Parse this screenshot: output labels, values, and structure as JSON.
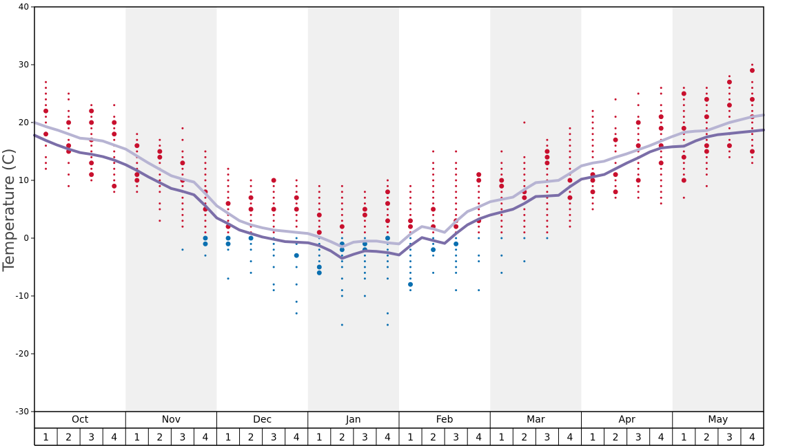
{
  "chart_data": {
    "type": "scatter",
    "ylabel": "Temperature (C)",
    "ylim": [
      -30,
      40
    ],
    "yticks": [
      40,
      30,
      20,
      10,
      0,
      -10,
      -20,
      -30
    ],
    "months": [
      "Oct",
      "Nov",
      "Dec",
      "Jan",
      "Feb",
      "Mar",
      "Apr",
      "May"
    ],
    "week_labels": [
      "1",
      "2",
      "3",
      "4"
    ],
    "x_range": [
      0.5,
      32.5
    ],
    "colors": {
      "warm_dot": "#c8102e",
      "cold_dot": "#0a6fb0",
      "high_line": "#b7b4d3",
      "low_line": "#7b6ea8",
      "band_shade": "#f0f0f0"
    },
    "series": [
      {
        "name": "",
        "role": "average-high",
        "x": [
          0.5,
          1,
          1.5,
          2,
          2.5,
          3,
          3.5,
          4,
          4.5,
          5,
          5.5,
          6,
          6.5,
          7,
          7.5,
          8,
          8.5,
          9,
          9.5,
          10,
          10.5,
          11,
          11.5,
          12,
          12.5,
          13,
          13.5,
          14,
          14.5,
          15,
          15.5,
          16,
          16.5,
          17,
          17.5,
          18,
          18.5,
          19,
          19.5,
          20,
          20.5,
          21,
          21.5,
          22,
          22.5,
          23,
          23.5,
          24,
          24.5,
          25,
          25.5,
          26,
          26.5,
          27,
          27.5,
          28,
          28.5,
          29,
          29.5,
          30,
          30.5,
          31,
          31.5,
          32,
          32.5
        ],
        "values": [
          20,
          19.3,
          18.7,
          18,
          17.3,
          17.1,
          16.8,
          16.1,
          15.4,
          14.2,
          13.0,
          11.9,
          10.8,
          10.2,
          9.7,
          7.7,
          5.6,
          4.3,
          3.0,
          2.3,
          1.8,
          1.4,
          1.2,
          1.0,
          0.8,
          0.2,
          -0.6,
          -1.5,
          -0.7,
          -0.5,
          -0.5,
          -0.8,
          -1.0,
          0.7,
          2.0,
          1.6,
          1.0,
          2.9,
          4.6,
          5.4,
          6.3,
          6.7,
          7.1,
          8.4,
          9.6,
          9.8,
          10.0,
          11.2,
          12.5,
          13.0,
          13.3,
          14.0,
          14.6,
          15.3,
          16.0,
          16.8,
          17.6,
          18.3,
          18.5,
          18.6,
          19.3,
          20.0,
          20.5,
          21.0,
          21.3
        ]
      },
      {
        "name": "",
        "role": "average-low",
        "x": [
          0.5,
          1,
          1.5,
          2,
          2.5,
          3,
          3.5,
          4,
          4.5,
          5,
          5.5,
          6,
          6.5,
          7,
          7.5,
          8,
          8.5,
          9,
          9.5,
          10,
          10.5,
          11,
          11.5,
          12,
          12.5,
          13,
          13.5,
          14,
          14.5,
          15,
          15.5,
          16,
          16.5,
          17,
          17.5,
          18,
          18.5,
          19,
          19.5,
          20,
          20.5,
          21,
          21.5,
          22,
          22.5,
          23,
          23.5,
          24,
          24.5,
          25,
          25.5,
          26,
          26.5,
          27,
          27.5,
          28,
          28.5,
          29,
          29.5,
          30,
          30.5,
          31,
          31.5,
          32,
          32.5
        ],
        "values": [
          17.8,
          16.9,
          16.1,
          15.4,
          14.8,
          14.5,
          14.1,
          13.5,
          12.7,
          11.7,
          10.6,
          9.6,
          8.6,
          8.1,
          7.5,
          5.6,
          3.5,
          2.5,
          1.4,
          0.8,
          0.2,
          -0.2,
          -0.6,
          -0.7,
          -0.8,
          -1.3,
          -2.2,
          -3.5,
          -2.8,
          -2.2,
          -2.3,
          -2.5,
          -2.9,
          -1.3,
          0.1,
          -0.4,
          -0.9,
          0.8,
          2.3,
          3.3,
          4.0,
          4.5,
          5.0,
          6.0,
          7.2,
          7.3,
          7.4,
          8.9,
          10.2,
          10.6,
          11.0,
          12.0,
          13.0,
          13.9,
          14.9,
          15.6,
          15.8,
          15.9,
          16.8,
          17.5,
          17.9,
          18.1,
          18.3,
          18.5,
          18.7
        ]
      }
    ],
    "dots": [
      [
        1,
        [
          27,
          26,
          25,
          24,
          23,
          22,
          21,
          20,
          18,
          16,
          14,
          13,
          12
        ],
        [
          22,
          18
        ]
      ],
      [
        2,
        [
          25,
          24,
          22,
          21,
          20,
          19,
          18,
          17,
          16,
          15,
          13,
          11,
          9
        ],
        [
          20,
          16,
          15
        ]
      ],
      [
        3,
        [
          23,
          22,
          21,
          20,
          19,
          18,
          17,
          16,
          15,
          14,
          13,
          12,
          11,
          10
        ],
        [
          22,
          20,
          17,
          13,
          11
        ]
      ],
      [
        4,
        [
          23,
          21,
          20,
          19,
          18,
          17,
          16,
          15,
          14,
          13,
          12,
          11,
          10,
          9,
          8
        ],
        [
          20,
          18,
          9
        ]
      ],
      [
        5,
        [
          18,
          17,
          15,
          14,
          13,
          12,
          11,
          10,
          9,
          8
        ],
        [
          16,
          11,
          10
        ]
      ],
      [
        6,
        [
          17,
          16,
          15,
          14,
          13,
          12,
          11,
          10,
          9,
          8,
          6,
          5,
          3
        ],
        [
          15,
          14
        ]
      ],
      [
        7,
        [
          19,
          17,
          15,
          14,
          13,
          12,
          11,
          10,
          9,
          8,
          7,
          6,
          5,
          4,
          3,
          2,
          -2
        ],
        [
          13,
          10
        ]
      ],
      [
        8,
        [
          15,
          14,
          13,
          12,
          11,
          10,
          9,
          8,
          7,
          6,
          5,
          4,
          3,
          2,
          1,
          0,
          -1,
          -3
        ],
        [
          8,
          5,
          0,
          -1
        ]
      ],
      [
        9,
        [
          12,
          11,
          10,
          9,
          8,
          7,
          6,
          5,
          4,
          3,
          2,
          1,
          0,
          -1,
          -2,
          -7
        ],
        [
          6,
          2,
          0,
          -1
        ]
      ],
      [
        10,
        [
          10,
          9,
          8,
          7,
          6,
          5,
          4,
          3,
          2,
          1,
          0,
          -1,
          -2,
          -4,
          -6
        ],
        [
          7,
          5,
          0
        ]
      ],
      [
        11,
        [
          10,
          9,
          8,
          7,
          6,
          5,
          4,
          3,
          2,
          1,
          0,
          -1,
          -2,
          -3,
          -5,
          -8,
          -9
        ],
        [
          10,
          5
        ]
      ],
      [
        12,
        [
          10,
          9,
          8,
          7,
          6,
          5,
          4,
          3,
          2,
          1,
          0,
          -1,
          -3,
          -5,
          -8,
          -11,
          -13
        ],
        [
          7,
          5,
          -3
        ]
      ],
      [
        13,
        [
          9,
          8,
          7,
          6,
          5,
          4,
          3,
          2,
          1,
          0,
          -1,
          -2,
          -3,
          -4,
          -5,
          -6
        ],
        [
          4,
          1,
          -5,
          -6
        ]
      ],
      [
        14,
        [
          9,
          8,
          7,
          6,
          5,
          4,
          3,
          2,
          1,
          0,
          -1,
          -2,
          -3,
          -4,
          -5,
          -7,
          -9,
          -10,
          -15
        ],
        [
          2,
          -1,
          -2
        ]
      ],
      [
        15,
        [
          8,
          7,
          6,
          5,
          4,
          3,
          2,
          1,
          0,
          -1,
          -2,
          -3,
          -4,
          -5,
          -6,
          -7,
          -10
        ],
        [
          5,
          4,
          -1,
          -2
        ]
      ],
      [
        16,
        [
          10,
          9,
          8,
          7,
          6,
          5,
          4,
          3,
          2,
          1,
          0,
          -1,
          -2,
          -3,
          -4,
          -5,
          -7,
          -13,
          -15
        ],
        [
          8,
          6,
          3,
          0
        ]
      ],
      [
        17,
        [
          9,
          8,
          7,
          6,
          5,
          4,
          3,
          2,
          1,
          0,
          -1,
          -2,
          -3,
          -4,
          -5,
          -6,
          -7,
          -8,
          -9
        ],
        [
          3,
          2,
          -8
        ]
      ],
      [
        18,
        [
          15,
          13,
          12,
          11,
          10,
          9,
          8,
          7,
          6,
          5,
          4,
          3,
          2,
          1,
          0,
          -1,
          -2,
          -3,
          -6
        ],
        [
          5,
          2,
          -2
        ]
      ],
      [
        19,
        [
          15,
          13,
          12,
          11,
          10,
          9,
          8,
          7,
          6,
          5,
          4,
          3,
          2,
          1,
          0,
          -1,
          -2,
          -3,
          -4,
          -5,
          -6,
          -9
        ],
        [
          3,
          2,
          -1
        ]
      ],
      [
        20,
        [
          11,
          10,
          9,
          8,
          7,
          6,
          5,
          4,
          3,
          2,
          1,
          0,
          -3,
          -4,
          -9
        ],
        [
          11,
          10,
          3
        ]
      ],
      [
        21,
        [
          15,
          13,
          12,
          11,
          10,
          9,
          8,
          7,
          6,
          5,
          4,
          3,
          2,
          1,
          0,
          -3,
          -6
        ],
        [
          10,
          9
        ]
      ],
      [
        22,
        [
          20,
          14,
          13,
          12,
          11,
          10,
          9,
          8,
          7,
          6,
          5,
          4,
          3,
          2,
          1,
          0,
          -4
        ],
        [
          8,
          7
        ]
      ],
      [
        23,
        [
          17,
          16,
          15,
          14,
          13,
          12,
          11,
          10,
          9,
          8,
          7,
          6,
          5,
          4,
          3,
          2,
          1,
          0
        ],
        [
          15,
          14,
          13
        ]
      ],
      [
        24,
        [
          19,
          18,
          17,
          16,
          15,
          14,
          13,
          12,
          11,
          10,
          9,
          8,
          7,
          6,
          5,
          4,
          3,
          2
        ],
        [
          10,
          7
        ]
      ],
      [
        25,
        [
          22,
          21,
          20,
          19,
          18,
          17,
          16,
          15,
          14,
          13,
          12,
          11,
          10,
          9,
          8,
          7,
          6,
          5
        ],
        [
          11,
          10,
          8
        ]
      ],
      [
        26,
        [
          24,
          21,
          19,
          18,
          17,
          16,
          15,
          14,
          13,
          12,
          11,
          10,
          9,
          8,
          7
        ],
        [
          17,
          11,
          8
        ]
      ],
      [
        27,
        [
          25,
          23,
          21,
          20,
          19,
          18,
          17,
          16,
          15,
          14,
          13,
          12,
          11,
          10,
          9,
          8,
          7
        ],
        [
          20,
          16,
          10
        ]
      ],
      [
        28,
        [
          26,
          25,
          23,
          22,
          21,
          20,
          19,
          18,
          17,
          16,
          15,
          14,
          13,
          12,
          11,
          10,
          9,
          8,
          7,
          6
        ],
        [
          21,
          19,
          16,
          13
        ]
      ],
      [
        29,
        [
          26,
          25,
          24,
          23,
          22,
          21,
          20,
          19,
          18,
          17,
          16,
          15,
          14,
          13,
          12,
          11,
          10,
          7
        ],
        [
          25,
          19,
          14,
          10
        ]
      ],
      [
        30,
        [
          26,
          25,
          24,
          23,
          22,
          21,
          20,
          19,
          18,
          17,
          16,
          15,
          14,
          13,
          12,
          11,
          9
        ],
        [
          24,
          21,
          16,
          15
        ]
      ],
      [
        31,
        [
          28,
          27,
          26,
          25,
          24,
          23,
          22,
          21,
          20,
          19,
          18,
          17,
          16,
          15,
          14
        ],
        [
          27,
          23,
          16
        ]
      ],
      [
        32,
        [
          30,
          29,
          27,
          26,
          25,
          24,
          23,
          22,
          21,
          20,
          19,
          18,
          17,
          16,
          15,
          14,
          13
        ],
        [
          29,
          24,
          21,
          15
        ]
      ]
    ]
  }
}
